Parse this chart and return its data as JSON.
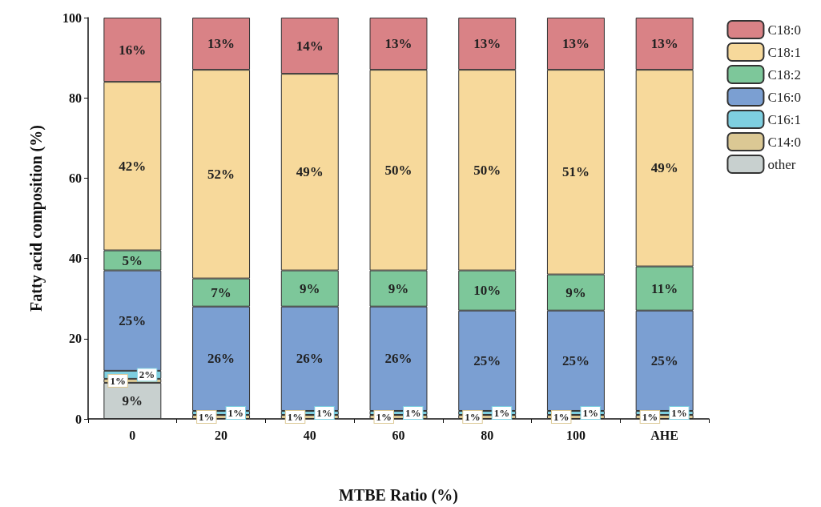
{
  "chart_data": {
    "type": "bar",
    "stacked": true,
    "xlabel": "MTBE Ratio (%)",
    "ylabel": "Fatty acid composition (%)",
    "categories": [
      "0",
      "20",
      "40",
      "60",
      "80",
      "100",
      "AHE"
    ],
    "ylim": [
      0,
      100
    ],
    "yticks": [
      0,
      20,
      40,
      60,
      80,
      100
    ],
    "grid": false,
    "legend": "top right",
    "series": [
      {
        "name": "other",
        "color": "#c8d0cf",
        "values": [
          9,
          null,
          null,
          null,
          null,
          null,
          null
        ],
        "value_labels": [
          "9%",
          null,
          null,
          null,
          null,
          null,
          null
        ]
      },
      {
        "name": "C14:0",
        "color": "#dbc894",
        "values": [
          1,
          1,
          1,
          1,
          1,
          1,
          1
        ],
        "value_labels": [
          "1%",
          "1%",
          "1%",
          "1%",
          "1%",
          "1%",
          "1%"
        ]
      },
      {
        "name": "C16:1",
        "color": "#7ecfe0",
        "values": [
          2,
          1,
          1,
          1,
          1,
          1,
          1
        ],
        "value_labels": [
          "2%",
          "1%",
          "1%",
          "1%",
          "1%",
          "1%",
          "1%"
        ]
      },
      {
        "name": "C16:0",
        "color": "#7b9fd2",
        "values": [
          25,
          26,
          26,
          26,
          25,
          25,
          25
        ],
        "value_labels": [
          "25%",
          "26%",
          "26%",
          "26%",
          "25%",
          "25%",
          "25%"
        ]
      },
      {
        "name": "C18:2",
        "color": "#7dc79a",
        "values": [
          5,
          7,
          9,
          9,
          10,
          9,
          11
        ],
        "value_labels": [
          "5%",
          "7%",
          "9%",
          "9%",
          "10%",
          "9%",
          "11%"
        ]
      },
      {
        "name": "C18:1",
        "color": "#f7d99b",
        "values": [
          42,
          52,
          49,
          50,
          50,
          51,
          49
        ],
        "value_labels": [
          "42%",
          "52%",
          "49%",
          "50%",
          "50%",
          "51%",
          "49%"
        ]
      },
      {
        "name": "C18:0",
        "color": "#d98286",
        "values": [
          16,
          13,
          14,
          13,
          13,
          13,
          13
        ],
        "value_labels": [
          "16%",
          "13%",
          "14%",
          "13%",
          "13%",
          "13%",
          "13%"
        ]
      }
    ]
  }
}
